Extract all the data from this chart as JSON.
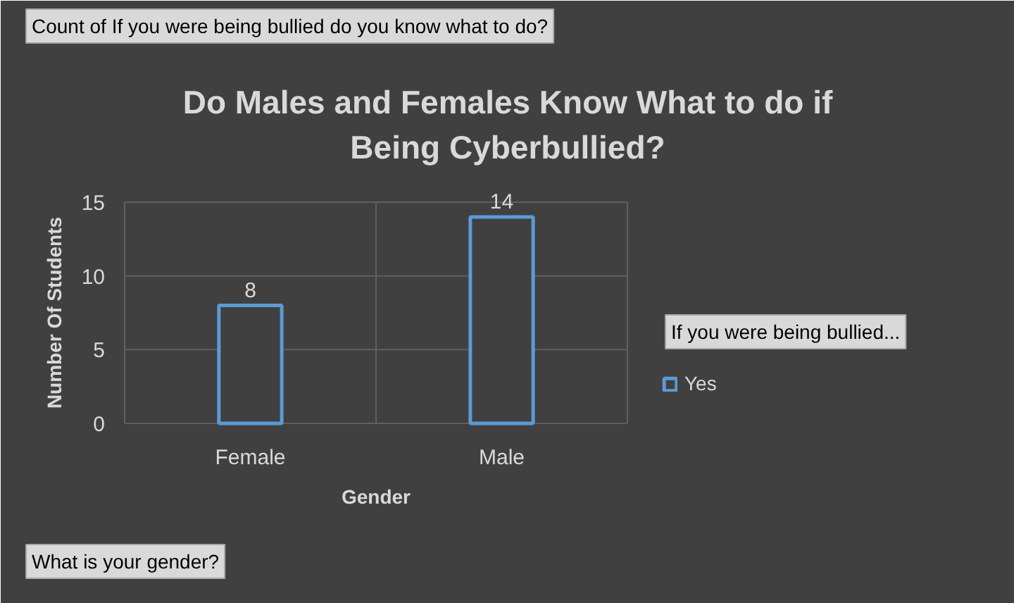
{
  "chart_data": {
    "type": "bar",
    "title": "Do Males and Females Know What to do if Being Cyberbullied?",
    "xlabel": "Gender",
    "ylabel": "Number Of Students",
    "categories": [
      "Female",
      "Male"
    ],
    "series": [
      {
        "name": "Yes",
        "color": "#5b9bd5",
        "values": [
          8,
          14
        ]
      }
    ],
    "ylim": [
      0,
      15
    ],
    "yticks": [
      0,
      5,
      10,
      15
    ],
    "grid": true,
    "data_labels": true,
    "legend": "right",
    "legend_title": "If you were being bullied...",
    "annotations": [
      "Count of If you were being bullied do you know what to do?",
      "What is your gender?"
    ]
  }
}
